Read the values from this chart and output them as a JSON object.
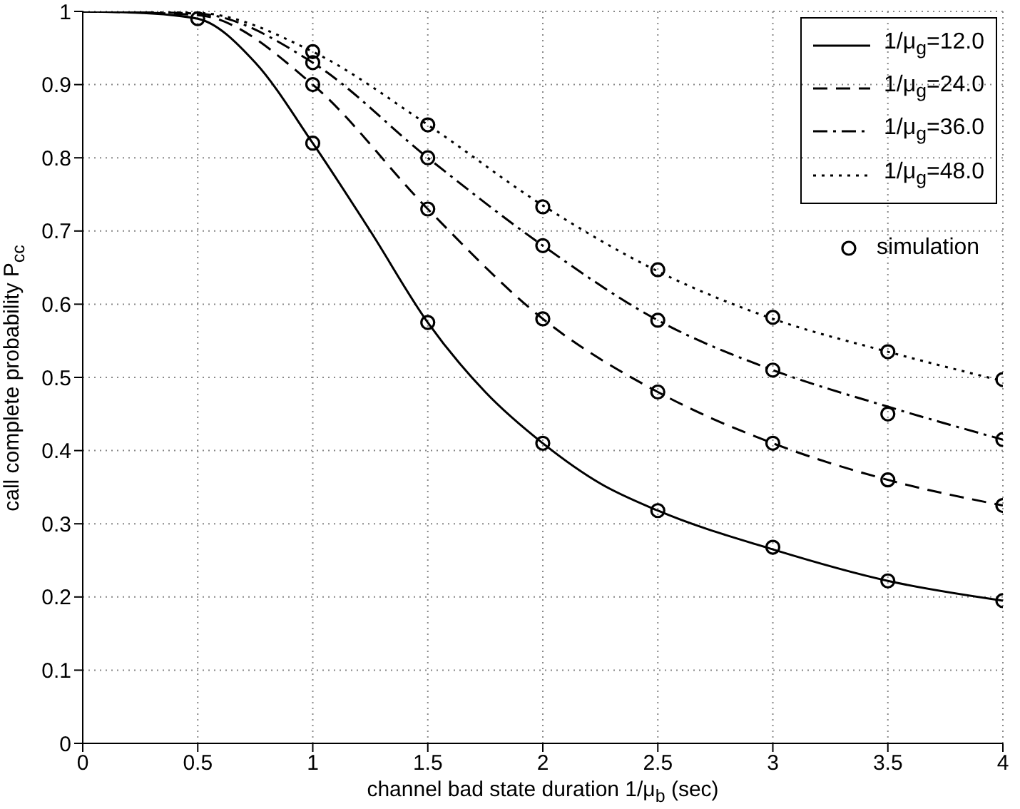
{
  "chart_data": {
    "type": "line",
    "xlabel": "channel bad state duration 1/μ$_{b}$ (sec)",
    "ylabel": "call complete probability P$_{cc}$",
    "xlim": [
      0,
      4
    ],
    "ylim": [
      0,
      1
    ],
    "xticks": [
      0,
      0.5,
      1,
      1.5,
      2,
      2.5,
      3,
      3.5,
      4
    ],
    "yticks": [
      0,
      0.1,
      0.2,
      0.3,
      0.4,
      0.5,
      0.6,
      0.7,
      0.8,
      0.9,
      1
    ],
    "grid": true,
    "legend": "top right",
    "marker": "none",
    "series": [
      {
        "name": "1/μ$_{g}$=12.0",
        "color": "#000000",
        "line_style": "solid",
        "x": [
          0,
          0.25,
          0.5,
          0.75,
          1,
          1.25,
          1.5,
          1.75,
          2,
          2.25,
          2.5,
          3,
          3.5,
          4
        ],
        "values": [
          1,
          0.998,
          0.99,
          0.93,
          0.82,
          0.7,
          0.575,
          0.48,
          0.41,
          0.355,
          0.318,
          0.265,
          0.222,
          0.195
        ]
      },
      {
        "name": "1/μ$_{g}$=24.0",
        "color": "#000000",
        "line_style": "dashed",
        "x": [
          0,
          0.5,
          1,
          1.5,
          2,
          2.5,
          3,
          3.5,
          4
        ],
        "values": [
          1,
          0.995,
          0.9,
          0.73,
          0.58,
          0.48,
          0.41,
          0.36,
          0.325
        ]
      },
      {
        "name": "1/μ$_{g}$=36.0",
        "color": "#000000",
        "line_style": "dashdot",
        "x": [
          0,
          0.5,
          1,
          1.5,
          2,
          2.5,
          3,
          3.5,
          4
        ],
        "values": [
          1,
          0.997,
          0.93,
          0.8,
          0.68,
          0.578,
          0.51,
          0.46,
          0.415
        ]
      },
      {
        "name": "1/μ$_{g}$=48.0",
        "color": "#000000",
        "line_style": "dotted",
        "x": [
          0,
          0.5,
          1,
          1.5,
          2,
          2.5,
          3,
          3.5,
          4
        ],
        "values": [
          1,
          0.998,
          0.945,
          0.845,
          0.735,
          0.645,
          0.58,
          0.535,
          0.495
        ]
      },
      {
        "name": "simulation",
        "type": "scatter",
        "marker": "circle",
        "color": "#000000",
        "x": [
          0.5,
          1,
          1.5,
          2,
          2.5,
          3,
          3.5,
          4,
          1,
          1.5,
          2,
          2.5,
          3,
          3.5,
          4,
          1,
          1.5,
          2,
          2.5,
          3,
          3.5,
          4,
          1,
          1.5,
          2,
          2.5,
          3,
          3.5,
          4
        ],
        "values": [
          0.99,
          0.82,
          0.575,
          0.41,
          0.318,
          0.268,
          0.222,
          0.195,
          0.9,
          0.73,
          0.58,
          0.48,
          0.41,
          0.36,
          0.325,
          0.93,
          0.8,
          0.68,
          0.578,
          0.51,
          0.45,
          0.415,
          0.945,
          0.845,
          0.733,
          0.647,
          0.582,
          0.535,
          0.497
        ]
      }
    ]
  }
}
